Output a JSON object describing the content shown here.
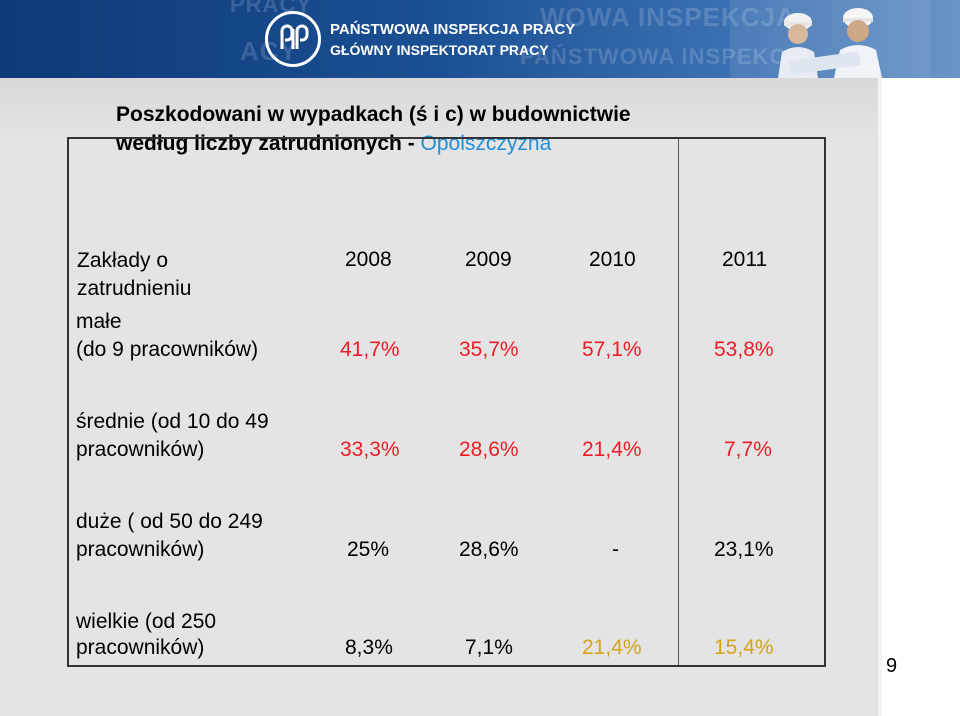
{
  "header": {
    "org_line1": "PAŃSTWOWA INSPEKCJA PRACY",
    "org_line2": "GŁÓWNY INSPEKTORAT PRACY",
    "logo": "pip-logo-icon"
  },
  "title": {
    "line1": "Poszkodowani w wypadkach (ś i c) w budownictwie",
    "line2_main": "według liczby zatrudnionych - ",
    "line2_accent": "Opolszczyzna"
  },
  "table": {
    "header_label_line1": "Zakłady o",
    "header_label_line2": "zatrudnieniu",
    "years": [
      "2008",
      "2009",
      "2010",
      "2011"
    ],
    "rows": [
      {
        "label_line1": "małe",
        "label_line2": "(do 9 pracowników)",
        "values": [
          "41,7%",
          "35,7%",
          "57,1%",
          "53,8%"
        ]
      },
      {
        "label_line1": "średnie (od 10 do 49",
        "label_line2": "pracowników)",
        "values": [
          "33,3%",
          "28,6%",
          "21,4%",
          "7,7%"
        ]
      },
      {
        "label_line1": "duże ( od 50 do 249",
        "label_line2": "pracowników)",
        "values": [
          "25%",
          "28,6%",
          "-",
          "23,1%"
        ]
      },
      {
        "label_line1": "wielkie (od 250",
        "label_line2": "pracowników)",
        "values": [
          "8,3%",
          "7,1%",
          "21,4%",
          "15,4%"
        ]
      }
    ]
  },
  "colors": {
    "banner": "#1b4f93",
    "accent_blue": "#1f8fd8",
    "row_red": "#ee1c25",
    "gold": "#d4a31a"
  },
  "page_number": "9"
}
